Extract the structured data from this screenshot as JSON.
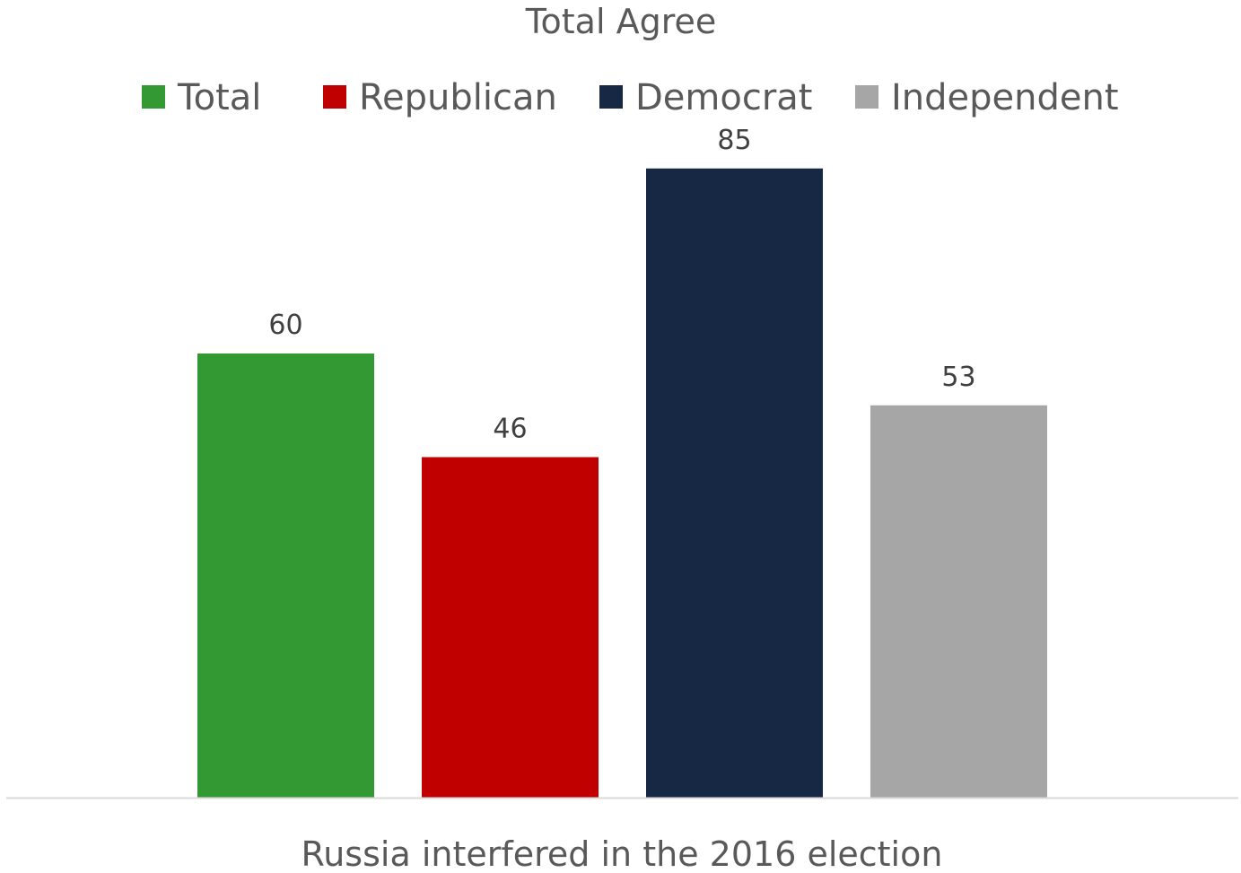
{
  "chart_data": {
    "type": "bar",
    "title": "Total Agree",
    "categories": [
      "Russia interfered in the 2016 election"
    ],
    "series": [
      {
        "name": "Total",
        "values": [
          60
        ],
        "color": "#339933"
      },
      {
        "name": "Republican",
        "values": [
          46
        ],
        "color": "#C00000"
      },
      {
        "name": "Democrat",
        "values": [
          85
        ],
        "color": "#172845"
      },
      {
        "name": "Independent",
        "values": [
          53
        ],
        "color": "#A6A6A6"
      }
    ],
    "ylim": [
      0,
      100
    ],
    "grid": false,
    "legend_position": "top",
    "data_labels": true
  }
}
